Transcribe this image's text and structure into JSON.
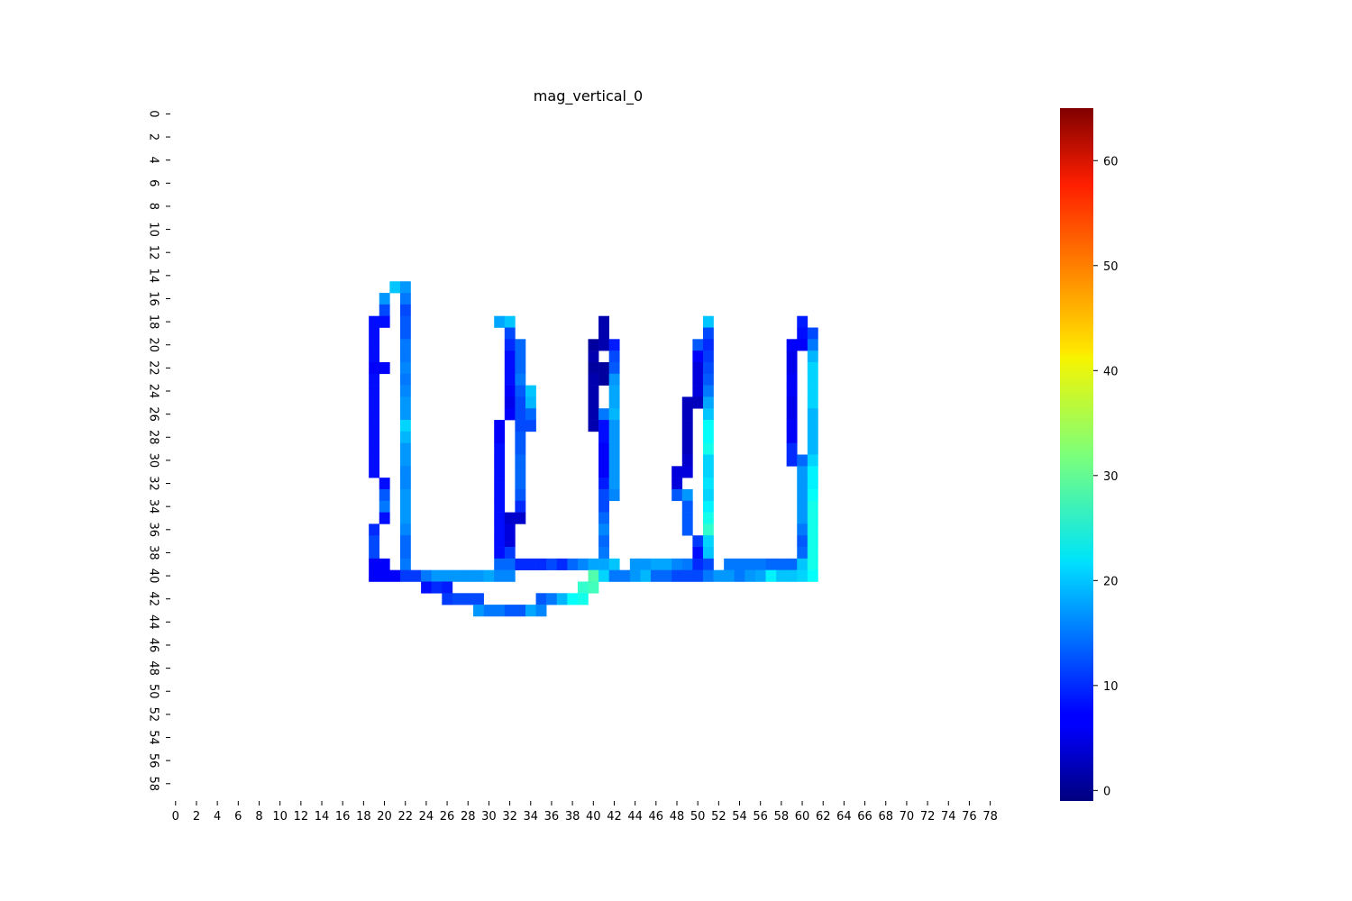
{
  "chart_data": {
    "type": "heatmap",
    "title": "mag_vertical_0",
    "xlabel": "",
    "ylabel": "",
    "n_cols": 80,
    "n_rows": 60,
    "x_tick_labels": [
      "0",
      "2",
      "4",
      "6",
      "8",
      "10",
      "12",
      "14",
      "16",
      "18",
      "20",
      "22",
      "24",
      "26",
      "28",
      "30",
      "32",
      "34",
      "36",
      "38",
      "40",
      "42",
      "44",
      "46",
      "48",
      "50",
      "52",
      "54",
      "56",
      "58",
      "60",
      "62",
      "64",
      "66",
      "68",
      "70",
      "72",
      "74",
      "76",
      "78"
    ],
    "y_tick_labels": [
      "0",
      "2",
      "4",
      "6",
      "8",
      "10",
      "12",
      "14",
      "16",
      "18",
      "20",
      "22",
      "24",
      "26",
      "28",
      "30",
      "32",
      "34",
      "36",
      "38",
      "40",
      "42",
      "44",
      "46",
      "48",
      "50",
      "52",
      "54",
      "56",
      "58"
    ],
    "colormap": "jet",
    "vmin": -1,
    "vmax": 65,
    "colorbar_ticks": [
      0,
      10,
      20,
      30,
      40,
      50,
      60
    ],
    "cells": [
      [
        15,
        21,
        20
      ],
      [
        15,
        22,
        17
      ],
      [
        16,
        20,
        17
      ],
      [
        16,
        22,
        15
      ],
      [
        17,
        20,
        12
      ],
      [
        17,
        22,
        12
      ],
      [
        18,
        19,
        8
      ],
      [
        18,
        20,
        8
      ],
      [
        18,
        22,
        13
      ],
      [
        18,
        31,
        18
      ],
      [
        18,
        32,
        20
      ],
      [
        18,
        41,
        2
      ],
      [
        18,
        51,
        20
      ],
      [
        18,
        60,
        9
      ],
      [
        19,
        19,
        8
      ],
      [
        19,
        22,
        13
      ],
      [
        19,
        32,
        12
      ],
      [
        19,
        41,
        2
      ],
      [
        19,
        51,
        12
      ],
      [
        19,
        60,
        8
      ],
      [
        19,
        61,
        12
      ],
      [
        20,
        19,
        8
      ],
      [
        20,
        22,
        15
      ],
      [
        20,
        32,
        10
      ],
      [
        20,
        33,
        14
      ],
      [
        20,
        40,
        1
      ],
      [
        20,
        41,
        2
      ],
      [
        20,
        42,
        9
      ],
      [
        20,
        50,
        13
      ],
      [
        20,
        51,
        10
      ],
      [
        20,
        59,
        7
      ],
      [
        20,
        60,
        7
      ],
      [
        20,
        61,
        15
      ],
      [
        21,
        19,
        8
      ],
      [
        21,
        22,
        15
      ],
      [
        21,
        32,
        8
      ],
      [
        21,
        33,
        14
      ],
      [
        21,
        40,
        2
      ],
      [
        21,
        42,
        12
      ],
      [
        21,
        50,
        7
      ],
      [
        21,
        51,
        11
      ],
      [
        21,
        59,
        6
      ],
      [
        21,
        61,
        19
      ],
      [
        22,
        19,
        7
      ],
      [
        22,
        20,
        7
      ],
      [
        22,
        22,
        16
      ],
      [
        22,
        32,
        8
      ],
      [
        22,
        33,
        14
      ],
      [
        22,
        40,
        1
      ],
      [
        22,
        41,
        1
      ],
      [
        22,
        42,
        13
      ],
      [
        22,
        50,
        5
      ],
      [
        22,
        51,
        12
      ],
      [
        22,
        59,
        6
      ],
      [
        22,
        61,
        21
      ],
      [
        23,
        19,
        8
      ],
      [
        23,
        22,
        15
      ],
      [
        23,
        32,
        8
      ],
      [
        23,
        33,
        15
      ],
      [
        23,
        40,
        2
      ],
      [
        23,
        41,
        1
      ],
      [
        23,
        42,
        17
      ],
      [
        23,
        50,
        5
      ],
      [
        23,
        51,
        13
      ],
      [
        23,
        59,
        7
      ],
      [
        23,
        61,
        21
      ],
      [
        24,
        19,
        8
      ],
      [
        24,
        22,
        16
      ],
      [
        24,
        32,
        7
      ],
      [
        24,
        33,
        13
      ],
      [
        24,
        34,
        20
      ],
      [
        24,
        40,
        2
      ],
      [
        24,
        42,
        18
      ],
      [
        24,
        50,
        5
      ],
      [
        24,
        51,
        15
      ],
      [
        24,
        59,
        7
      ],
      [
        24,
        61,
        21
      ],
      [
        25,
        19,
        8
      ],
      [
        25,
        22,
        17
      ],
      [
        25,
        32,
        6
      ],
      [
        25,
        33,
        12
      ],
      [
        25,
        34,
        19
      ],
      [
        25,
        40,
        2
      ],
      [
        25,
        42,
        18
      ],
      [
        25,
        49,
        3
      ],
      [
        25,
        50,
        3
      ],
      [
        25,
        51,
        18
      ],
      [
        25,
        59,
        6
      ],
      [
        25,
        61,
        21
      ],
      [
        26,
        19,
        8
      ],
      [
        26,
        22,
        17
      ],
      [
        26,
        32,
        7
      ],
      [
        26,
        33,
        12
      ],
      [
        26,
        34,
        14
      ],
      [
        26,
        40,
        2
      ],
      [
        26,
        41,
        15
      ],
      [
        26,
        42,
        19
      ],
      [
        26,
        49,
        3
      ],
      [
        26,
        51,
        20
      ],
      [
        26,
        59,
        6
      ],
      [
        26,
        61,
        19
      ],
      [
        27,
        19,
        8
      ],
      [
        27,
        22,
        21
      ],
      [
        27,
        31,
        7
      ],
      [
        27,
        33,
        12
      ],
      [
        27,
        34,
        12
      ],
      [
        27,
        40,
        2
      ],
      [
        27,
        41,
        8
      ],
      [
        27,
        42,
        17
      ],
      [
        27,
        49,
        3
      ],
      [
        27,
        51,
        24
      ],
      [
        27,
        59,
        7
      ],
      [
        27,
        61,
        19
      ],
      [
        28,
        19,
        8
      ],
      [
        28,
        22,
        19
      ],
      [
        28,
        31,
        7
      ],
      [
        28,
        33,
        13
      ],
      [
        28,
        41,
        8
      ],
      [
        28,
        42,
        17
      ],
      [
        28,
        49,
        3
      ],
      [
        28,
        51,
        24
      ],
      [
        28,
        59,
        7
      ],
      [
        28,
        61,
        19
      ],
      [
        29,
        19,
        8
      ],
      [
        29,
        22,
        17
      ],
      [
        29,
        31,
        8
      ],
      [
        29,
        33,
        13
      ],
      [
        29,
        41,
        7
      ],
      [
        29,
        42,
        17
      ],
      [
        29,
        49,
        3
      ],
      [
        29,
        51,
        25
      ],
      [
        29,
        59,
        10
      ],
      [
        29,
        61,
        19
      ],
      [
        30,
        19,
        8
      ],
      [
        30,
        22,
        17
      ],
      [
        30,
        31,
        8
      ],
      [
        30,
        33,
        14
      ],
      [
        30,
        41,
        7
      ],
      [
        30,
        42,
        17
      ],
      [
        30,
        49,
        4
      ],
      [
        30,
        51,
        21
      ],
      [
        30,
        59,
        10
      ],
      [
        30,
        60,
        14
      ],
      [
        30,
        61,
        21
      ],
      [
        31,
        19,
        8
      ],
      [
        31,
        22,
        16
      ],
      [
        31,
        31,
        8
      ],
      [
        31,
        33,
        14
      ],
      [
        31,
        41,
        7
      ],
      [
        31,
        42,
        17
      ],
      [
        31,
        48,
        5
      ],
      [
        31,
        49,
        5
      ],
      [
        31,
        51,
        21
      ],
      [
        31,
        60,
        17
      ],
      [
        31,
        61,
        23
      ],
      [
        32,
        20,
        8
      ],
      [
        32,
        22,
        16
      ],
      [
        32,
        31,
        8
      ],
      [
        32,
        33,
        14
      ],
      [
        32,
        41,
        9
      ],
      [
        32,
        42,
        17
      ],
      [
        32,
        48,
        5
      ],
      [
        32,
        51,
        22
      ],
      [
        32,
        60,
        17
      ],
      [
        32,
        61,
        23
      ],
      [
        33,
        20,
        13
      ],
      [
        33,
        22,
        17
      ],
      [
        33,
        31,
        8
      ],
      [
        33,
        33,
        13
      ],
      [
        33,
        41,
        12
      ],
      [
        33,
        42,
        16
      ],
      [
        33,
        48,
        13
      ],
      [
        33,
        49,
        17
      ],
      [
        33,
        51,
        21
      ],
      [
        33,
        60,
        17
      ],
      [
        33,
        61,
        24
      ],
      [
        34,
        20,
        15
      ],
      [
        34,
        22,
        17
      ],
      [
        34,
        31,
        8
      ],
      [
        34,
        33,
        10
      ],
      [
        34,
        41,
        12
      ],
      [
        34,
        49,
        13
      ],
      [
        34,
        51,
        23
      ],
      [
        34,
        60,
        17
      ],
      [
        34,
        61,
        25
      ],
      [
        35,
        20,
        8
      ],
      [
        35,
        22,
        17
      ],
      [
        35,
        31,
        8
      ],
      [
        35,
        32,
        4
      ],
      [
        35,
        33,
        4
      ],
      [
        35,
        41,
        14
      ],
      [
        35,
        49,
        13
      ],
      [
        35,
        51,
        25
      ],
      [
        35,
        60,
        17
      ],
      [
        35,
        61,
        25
      ],
      [
        36,
        19,
        10
      ],
      [
        36,
        22,
        16
      ],
      [
        36,
        31,
        8
      ],
      [
        36,
        32,
        5
      ],
      [
        36,
        41,
        16
      ],
      [
        36,
        49,
        13
      ],
      [
        36,
        51,
        27
      ],
      [
        36,
        60,
        15
      ],
      [
        36,
        61,
        25
      ],
      [
        37,
        19,
        12
      ],
      [
        37,
        22,
        14
      ],
      [
        37,
        31,
        8
      ],
      [
        37,
        32,
        5
      ],
      [
        37,
        41,
        14
      ],
      [
        37,
        50,
        11
      ],
      [
        37,
        51,
        21
      ],
      [
        37,
        60,
        13
      ],
      [
        37,
        61,
        25
      ],
      [
        38,
        19,
        12
      ],
      [
        38,
        22,
        14
      ],
      [
        38,
        31,
        8
      ],
      [
        38,
        32,
        11
      ],
      [
        38,
        41,
        15
      ],
      [
        38,
        50,
        8
      ],
      [
        38,
        51,
        20
      ],
      [
        38,
        60,
        14
      ],
      [
        38,
        61,
        25
      ],
      [
        39,
        19,
        7
      ],
      [
        39,
        20,
        7
      ],
      [
        39,
        22,
        15
      ],
      [
        39,
        31,
        14
      ],
      [
        39,
        32,
        14
      ],
      [
        39,
        33,
        10
      ],
      [
        39,
        34,
        10
      ],
      [
        39,
        35,
        10
      ],
      [
        39,
        36,
        12
      ],
      [
        39,
        37,
        10
      ],
      [
        39,
        38,
        14
      ],
      [
        39,
        39,
        16
      ],
      [
        39,
        40,
        18
      ],
      [
        39,
        41,
        18
      ],
      [
        39,
        42,
        20
      ],
      [
        39,
        44,
        17
      ],
      [
        39,
        45,
        17
      ],
      [
        39,
        46,
        18
      ],
      [
        39,
        47,
        18
      ],
      [
        39,
        48,
        16
      ],
      [
        39,
        49,
        15
      ],
      [
        39,
        50,
        10
      ],
      [
        39,
        51,
        12
      ],
      [
        39,
        53,
        15
      ],
      [
        39,
        54,
        15
      ],
      [
        39,
        55,
        15
      ],
      [
        39,
        56,
        15
      ],
      [
        39,
        57,
        14
      ],
      [
        39,
        58,
        14
      ],
      [
        39,
        59,
        14
      ],
      [
        39,
        60,
        20
      ],
      [
        39,
        61,
        25
      ],
      [
        40,
        19,
        7
      ],
      [
        40,
        20,
        7
      ],
      [
        40,
        21,
        7
      ],
      [
        40,
        22,
        11
      ],
      [
        40,
        23,
        11
      ],
      [
        40,
        24,
        15
      ],
      [
        40,
        25,
        17
      ],
      [
        40,
        26,
        17
      ],
      [
        40,
        27,
        17
      ],
      [
        40,
        28,
        17
      ],
      [
        40,
        29,
        17
      ],
      [
        40,
        30,
        18
      ],
      [
        40,
        31,
        16
      ],
      [
        40,
        32,
        16
      ],
      [
        40,
        40,
        29
      ],
      [
        40,
        41,
        21
      ],
      [
        40,
        42,
        15
      ],
      [
        40,
        43,
        15
      ],
      [
        40,
        44,
        17
      ],
      [
        40,
        45,
        19
      ],
      [
        40,
        46,
        14
      ],
      [
        40,
        47,
        14
      ],
      [
        40,
        48,
        12
      ],
      [
        40,
        49,
        12
      ],
      [
        40,
        50,
        12
      ],
      [
        40,
        51,
        15
      ],
      [
        40,
        52,
        17
      ],
      [
        40,
        53,
        17
      ],
      [
        40,
        54,
        15
      ],
      [
        40,
        55,
        17
      ],
      [
        40,
        56,
        18
      ],
      [
        40,
        57,
        23
      ],
      [
        40,
        58,
        20
      ],
      [
        40,
        59,
        20
      ],
      [
        40,
        60,
        21
      ],
      [
        40,
        61,
        24
      ],
      [
        41,
        24,
        8
      ],
      [
        41,
        25,
        10
      ],
      [
        41,
        26,
        9
      ],
      [
        41,
        39,
        27
      ],
      [
        41,
        40,
        28
      ],
      [
        42,
        26,
        11
      ],
      [
        42,
        27,
        12
      ],
      [
        42,
        28,
        12
      ],
      [
        42,
        29,
        12
      ],
      [
        42,
        35,
        13
      ],
      [
        42,
        36,
        15
      ],
      [
        42,
        37,
        19
      ],
      [
        42,
        38,
        24
      ],
      [
        42,
        39,
        25
      ],
      [
        43,
        29,
        17
      ],
      [
        43,
        30,
        15
      ],
      [
        43,
        31,
        15
      ],
      [
        43,
        32,
        13
      ],
      [
        43,
        33,
        13
      ],
      [
        43,
        34,
        18
      ],
      [
        43,
        35,
        16
      ]
    ]
  }
}
